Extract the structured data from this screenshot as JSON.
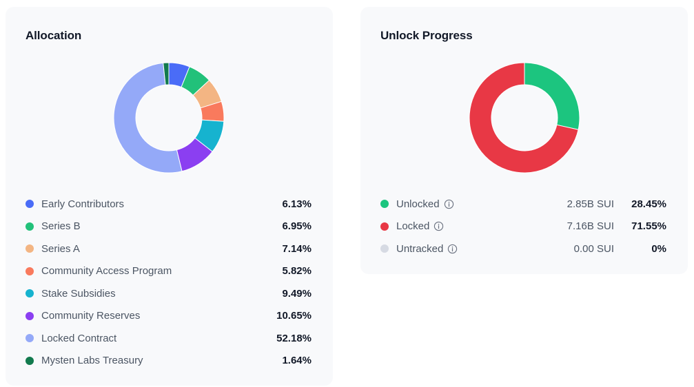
{
  "allocation": {
    "title": "Allocation",
    "items": [
      {
        "label": "Early Contributors",
        "pct_text": "6.13%"
      },
      {
        "label": "Series B",
        "pct_text": "6.95%"
      },
      {
        "label": "Series A",
        "pct_text": "7.14%"
      },
      {
        "label": "Community Access Program",
        "pct_text": "5.82%"
      },
      {
        "label": "Stake Subsidies",
        "pct_text": "9.49%"
      },
      {
        "label": "Community Reserves",
        "pct_text": "10.65%"
      },
      {
        "label": "Locked Contract",
        "pct_text": "52.18%"
      },
      {
        "label": "Mysten Labs Treasury",
        "pct_text": "1.64%"
      }
    ]
  },
  "unlock": {
    "title": "Unlock Progress",
    "items": [
      {
        "label": "Unlocked",
        "amount": "2.85B SUI",
        "pct_text": "28.45%",
        "info_icon": "info-icon"
      },
      {
        "label": "Locked",
        "amount": "7.16B SUI",
        "pct_text": "71.55%",
        "info_icon": "info-icon"
      },
      {
        "label": "Untracked",
        "amount": "0.00 SUI",
        "pct_text": "0%",
        "info_icon": "info-icon"
      }
    ]
  },
  "chart_data": [
    {
      "type": "pie",
      "title": "Allocation",
      "donut": true,
      "categories": [
        "Early Contributors",
        "Series B",
        "Series A",
        "Community Access Program",
        "Stake Subsidies",
        "Community Reserves",
        "Locked Contract",
        "Mysten Labs Treasury"
      ],
      "values": [
        6.13,
        6.95,
        7.14,
        5.82,
        9.49,
        10.65,
        52.18,
        1.64
      ],
      "colors": [
        "#4a6cf7",
        "#22c17a",
        "#f3b583",
        "#f97a5d",
        "#16b3cf",
        "#8b3ff1",
        "#94a9f8",
        "#127a4e"
      ]
    },
    {
      "type": "pie",
      "title": "Unlock Progress",
      "donut": true,
      "categories": [
        "Unlocked",
        "Locked",
        "Untracked"
      ],
      "values": [
        28.45,
        71.55,
        0
      ],
      "colors": [
        "#1cc57f",
        "#e83845",
        "#d6dae3"
      ]
    }
  ]
}
